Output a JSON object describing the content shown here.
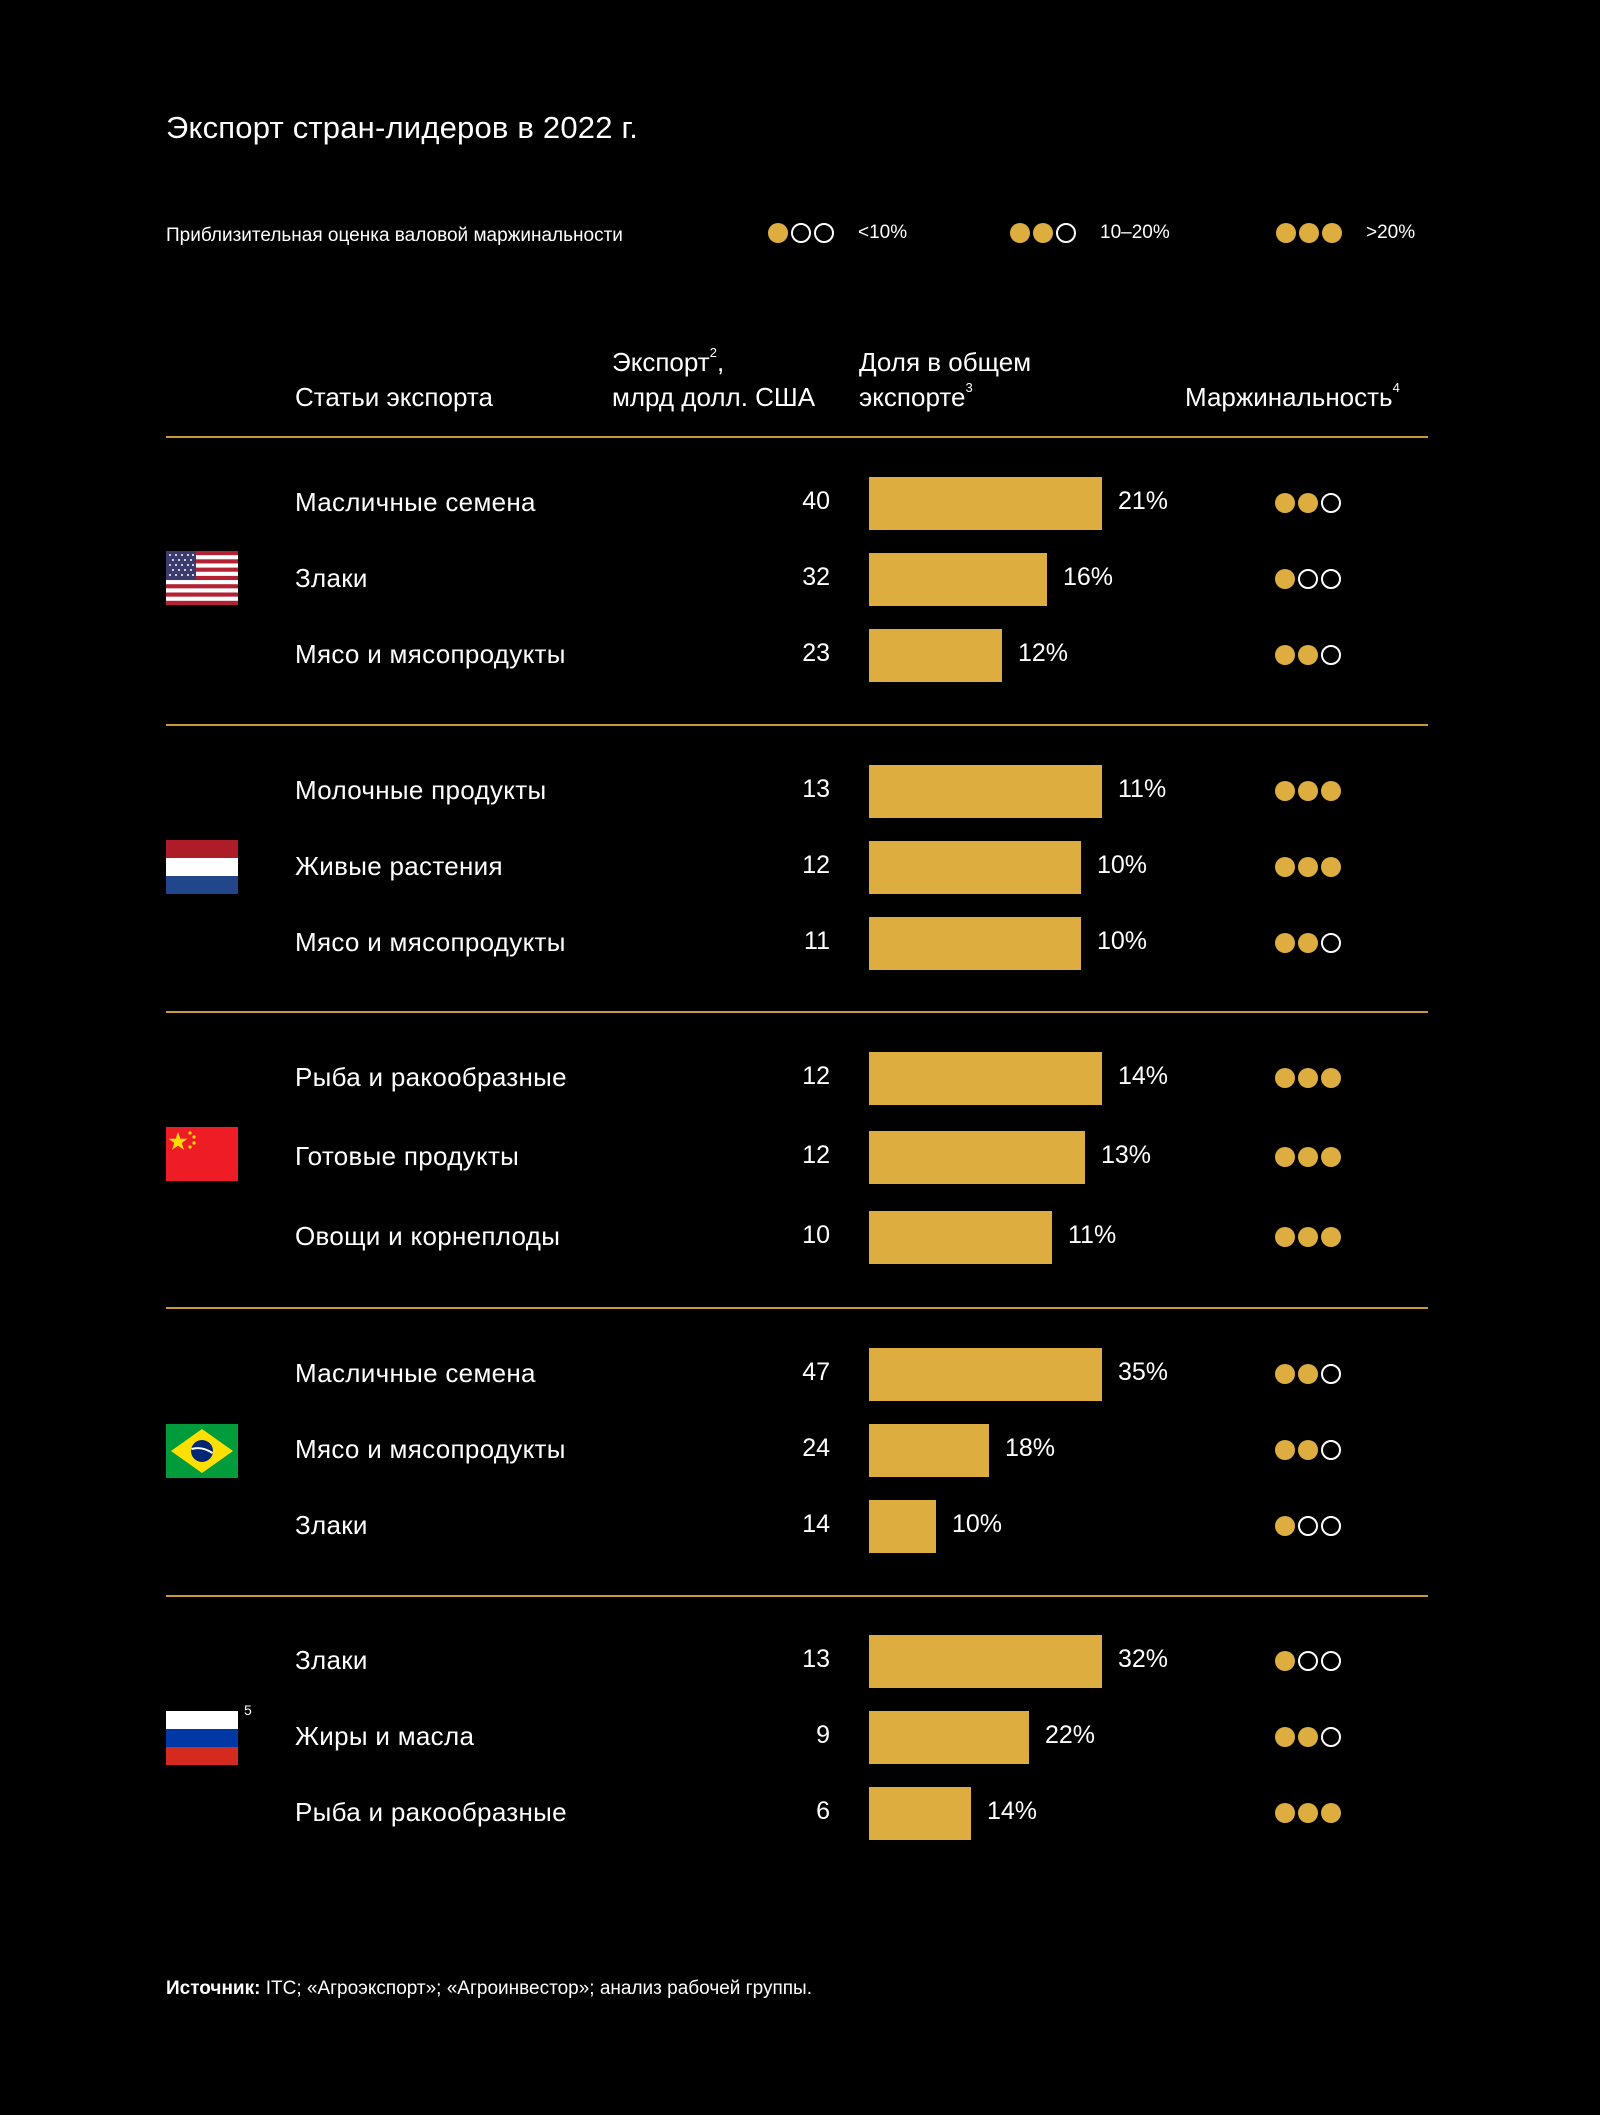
{
  "title": "Экспорт стран-лидеров в 2022 г.",
  "legend": {
    "label": "Приблизительная оценка валовой маржинальности",
    "items": [
      {
        "level": 1,
        "text": "<10%"
      },
      {
        "level": 2,
        "text": "10–20%"
      },
      {
        "level": 3,
        "text": ">20%"
      }
    ]
  },
  "headers": {
    "items": "Статьи экспорта",
    "export_line1": "Экспорт",
    "export_sup": "2",
    "export_line1_suffix": ",",
    "export_line2": "млрд долл. США",
    "share_line1": "Доля в общем",
    "share_line2": "экспорте",
    "share_sup": "3",
    "margin": "Маржинальность",
    "margin_sup": "4"
  },
  "colors": {
    "accent": "#DDAE3F",
    "divider": "#C79A35",
    "background": "#000000"
  },
  "chart_data": {
    "type": "bar",
    "groups": [
      {
        "country_flag": "us-flag-icon",
        "rows": [
          {
            "item": "Масличные семена",
            "export": 40,
            "share": 21,
            "share_label": "21%",
            "margin_level": 2
          },
          {
            "item": "Злаки",
            "export": 32,
            "share": 16,
            "share_label": "16%",
            "margin_level": 1
          },
          {
            "item": "Мясо и мясопродукты",
            "export": 23,
            "share": 12,
            "share_label": "12%",
            "margin_level": 2
          }
        ]
      },
      {
        "country_flag": "netherlands-flag-icon",
        "rows": [
          {
            "item": "Молочные продукты",
            "export": 13,
            "share": 11,
            "share_label": "11%",
            "margin_level": 3
          },
          {
            "item": "Живые растения",
            "export": 12,
            "share": 10,
            "share_label": "10%",
            "margin_level": 3
          },
          {
            "item": "Мясо и мясопродукты",
            "export": 11,
            "share": 10,
            "share_label": "10%",
            "margin_level": 2
          }
        ]
      },
      {
        "country_flag": "china-flag-icon",
        "rows": [
          {
            "item": "Рыба и ракообразные",
            "export": 12,
            "share": 14,
            "share_label": "14%",
            "margin_level": 3
          },
          {
            "item": "Готовые продукты",
            "export": 12,
            "share": 13,
            "share_label": "13%",
            "margin_level": 3
          },
          {
            "item": "Овощи и корнеплоды",
            "export": 10,
            "share": 11,
            "share_label": "11%",
            "margin_level": 3
          }
        ]
      },
      {
        "country_flag": "brazil-flag-icon",
        "rows": [
          {
            "item": "Масличные семена",
            "export": 47,
            "share": 35,
            "share_label": "35%",
            "margin_level": 2
          },
          {
            "item": "Мясо и мясопродукты",
            "export": 24,
            "share": 18,
            "share_label": "18%",
            "margin_level": 2
          },
          {
            "item": "Злаки",
            "export": 14,
            "share": 10,
            "share_label": "10%",
            "margin_level": 1
          }
        ]
      },
      {
        "country_flag": "russia-flag-icon",
        "footnote": "5",
        "rows": [
          {
            "item": "Злаки",
            "export": 13,
            "share": 32,
            "share_label": "32%",
            "margin_level": 1
          },
          {
            "item": "Жиры и масла",
            "export": 9,
            "share": 22,
            "share_label": "22%",
            "margin_level": 2
          },
          {
            "item": "Рыба и ракообразные",
            "export": 6,
            "share": 14,
            "share_label": "14%",
            "margin_level": 3
          }
        ]
      }
    ]
  },
  "source": {
    "label": "Источник:",
    "text": " ITC; «Агроэкспорт»; «Агроинвестор»; анализ рабочей группы."
  }
}
